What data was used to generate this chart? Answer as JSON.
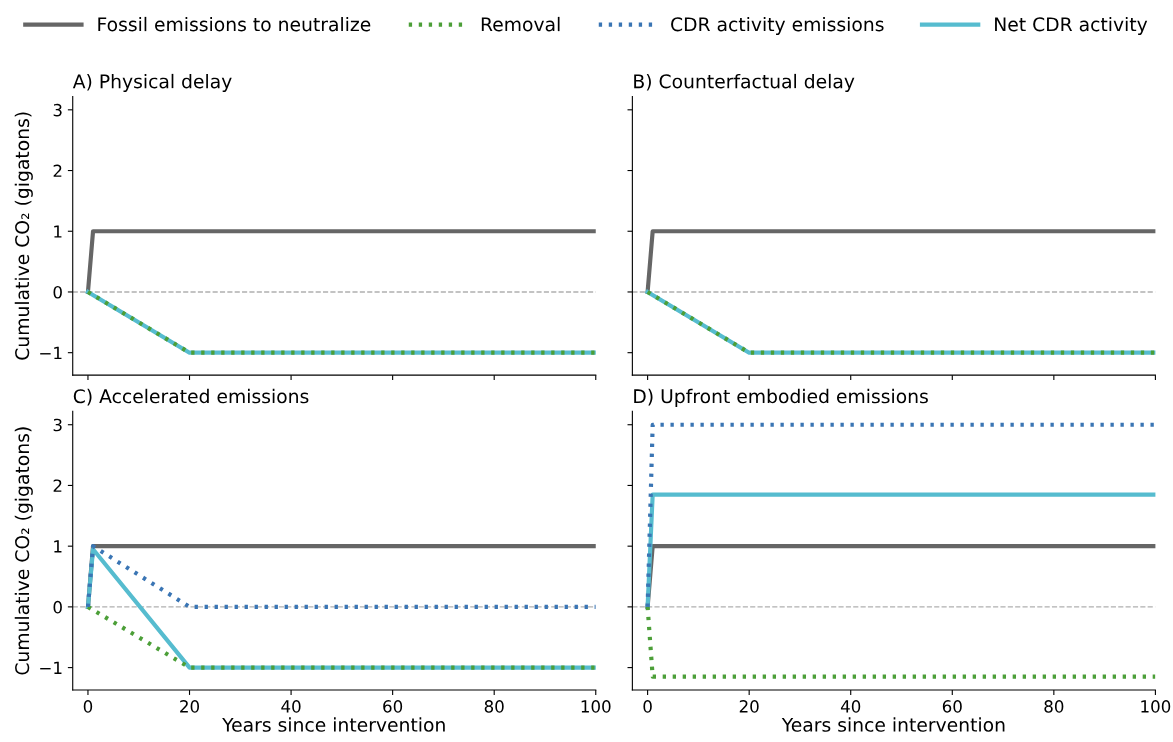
{
  "chart_data": [
    {
      "type": "line",
      "title": "A) Physical delay",
      "ylabel": "Cumulative CO₂ (gigatons)",
      "xlim": [
        -3,
        100
      ],
      "ylim": [
        -1.37,
        3.22
      ],
      "xticks": [
        0,
        20,
        40,
        60,
        80,
        100
      ],
      "yticks": [
        -1,
        0,
        1,
        2,
        3
      ],
      "tick_labels": "y",
      "grid": false,
      "legend": "top",
      "ref_lines": [
        {
          "axis": "y",
          "value": 0,
          "color": "#b0b0b0",
          "line_style": "dashed"
        }
      ],
      "series": [
        {
          "name": "Fossil emissions to neutralize",
          "color": "#666666",
          "line_style": "solid",
          "x": [
            0,
            1,
            100
          ],
          "values": [
            0,
            1,
            1
          ]
        },
        {
          "name": "Net CDR activity",
          "color": "#56bccf",
          "line_style": "solid",
          "x": [
            0,
            20,
            100
          ],
          "values": [
            0,
            -1,
            -1
          ]
        },
        {
          "name": "Removal",
          "color": "#4c9f38",
          "line_style": "dotted",
          "x": [
            0,
            20,
            100
          ],
          "values": [
            0,
            -1,
            -1
          ]
        }
      ]
    },
    {
      "type": "line",
      "title": "B) Counterfactual delay",
      "xlim": [
        -3,
        100
      ],
      "ylim": [
        -1.37,
        3.22
      ],
      "xticks": [
        0,
        20,
        40,
        60,
        80,
        100
      ],
      "yticks": [
        -1,
        0,
        1,
        2,
        3
      ],
      "tick_labels": false,
      "grid": false,
      "ref_lines": [
        {
          "axis": "y",
          "value": 0,
          "color": "#b0b0b0",
          "line_style": "dashed"
        }
      ],
      "series": [
        {
          "name": "Fossil emissions to neutralize",
          "color": "#666666",
          "line_style": "solid",
          "x": [
            0,
            1,
            100
          ],
          "values": [
            0,
            1,
            1
          ]
        },
        {
          "name": "Net CDR activity",
          "color": "#56bccf",
          "line_style": "solid",
          "x": [
            0,
            20,
            100
          ],
          "values": [
            0,
            -1,
            -1
          ]
        },
        {
          "name": "Removal",
          "color": "#4c9f38",
          "line_style": "dotted",
          "x": [
            0,
            20,
            100
          ],
          "values": [
            0,
            -1,
            -1
          ]
        }
      ]
    },
    {
      "type": "line",
      "title": "C) Accelerated emissions",
      "xlabel": "Years since intervention",
      "ylabel": "Cumulative CO₂ (gigatons)",
      "xlim": [
        -3,
        100
      ],
      "ylim": [
        -1.37,
        3.22
      ],
      "xticks": [
        0,
        20,
        40,
        60,
        80,
        100
      ],
      "yticks": [
        -1,
        0,
        1,
        2,
        3
      ],
      "grid": false,
      "ref_lines": [
        {
          "axis": "y",
          "value": 0,
          "color": "#b0b0b0",
          "line_style": "dashed"
        }
      ],
      "series": [
        {
          "name": "Fossil emissions to neutralize",
          "color": "#666666",
          "line_style": "solid",
          "x": [
            0,
            1,
            100
          ],
          "values": [
            0,
            1,
            1
          ]
        },
        {
          "name": "Removal",
          "color": "#4c9f38",
          "line_style": "dotted",
          "x": [
            0,
            20,
            100
          ],
          "values": [
            0,
            -1,
            -1
          ]
        },
        {
          "name": "CDR activity emissions",
          "color": "#3a75b4",
          "line_style": "dotted",
          "x": [
            0,
            1,
            20,
            100
          ],
          "values": [
            0,
            1,
            0,
            0
          ]
        },
        {
          "name": "Net CDR activity",
          "color": "#56bccf",
          "line_style": "solid",
          "x": [
            0,
            1,
            20,
            100
          ],
          "values": [
            0,
            0.95,
            -1,
            -1
          ]
        }
      ]
    },
    {
      "type": "line",
      "title": "D) Upfront embodied emissions",
      "xlabel": "Years since intervention",
      "xlim": [
        -3,
        100
      ],
      "ylim": [
        -1.37,
        3.22
      ],
      "xticks": [
        0,
        20,
        40,
        60,
        80,
        100
      ],
      "yticks": [
        -1,
        0,
        1,
        2,
        3
      ],
      "tick_labels": "x",
      "grid": false,
      "ref_lines": [
        {
          "axis": "y",
          "value": 0,
          "color": "#b0b0b0",
          "line_style": "dashed"
        }
      ],
      "series": [
        {
          "name": "Fossil emissions to neutralize",
          "color": "#666666",
          "line_style": "solid",
          "x": [
            0,
            1,
            100
          ],
          "values": [
            0,
            1,
            1
          ]
        },
        {
          "name": "Removal",
          "color": "#4c9f38",
          "line_style": "dotted",
          "x": [
            0,
            1,
            100
          ],
          "values": [
            0,
            -1.15,
            -1.15
          ]
        },
        {
          "name": "CDR activity emissions",
          "color": "#3a75b4",
          "line_style": "dotted",
          "x": [
            0,
            1,
            100
          ],
          "values": [
            0,
            3,
            3
          ]
        },
        {
          "name": "Net CDR activity",
          "color": "#56bccf",
          "line_style": "solid",
          "x": [
            0,
            1,
            100
          ],
          "values": [
            0,
            1.85,
            1.85
          ]
        }
      ]
    }
  ]
}
